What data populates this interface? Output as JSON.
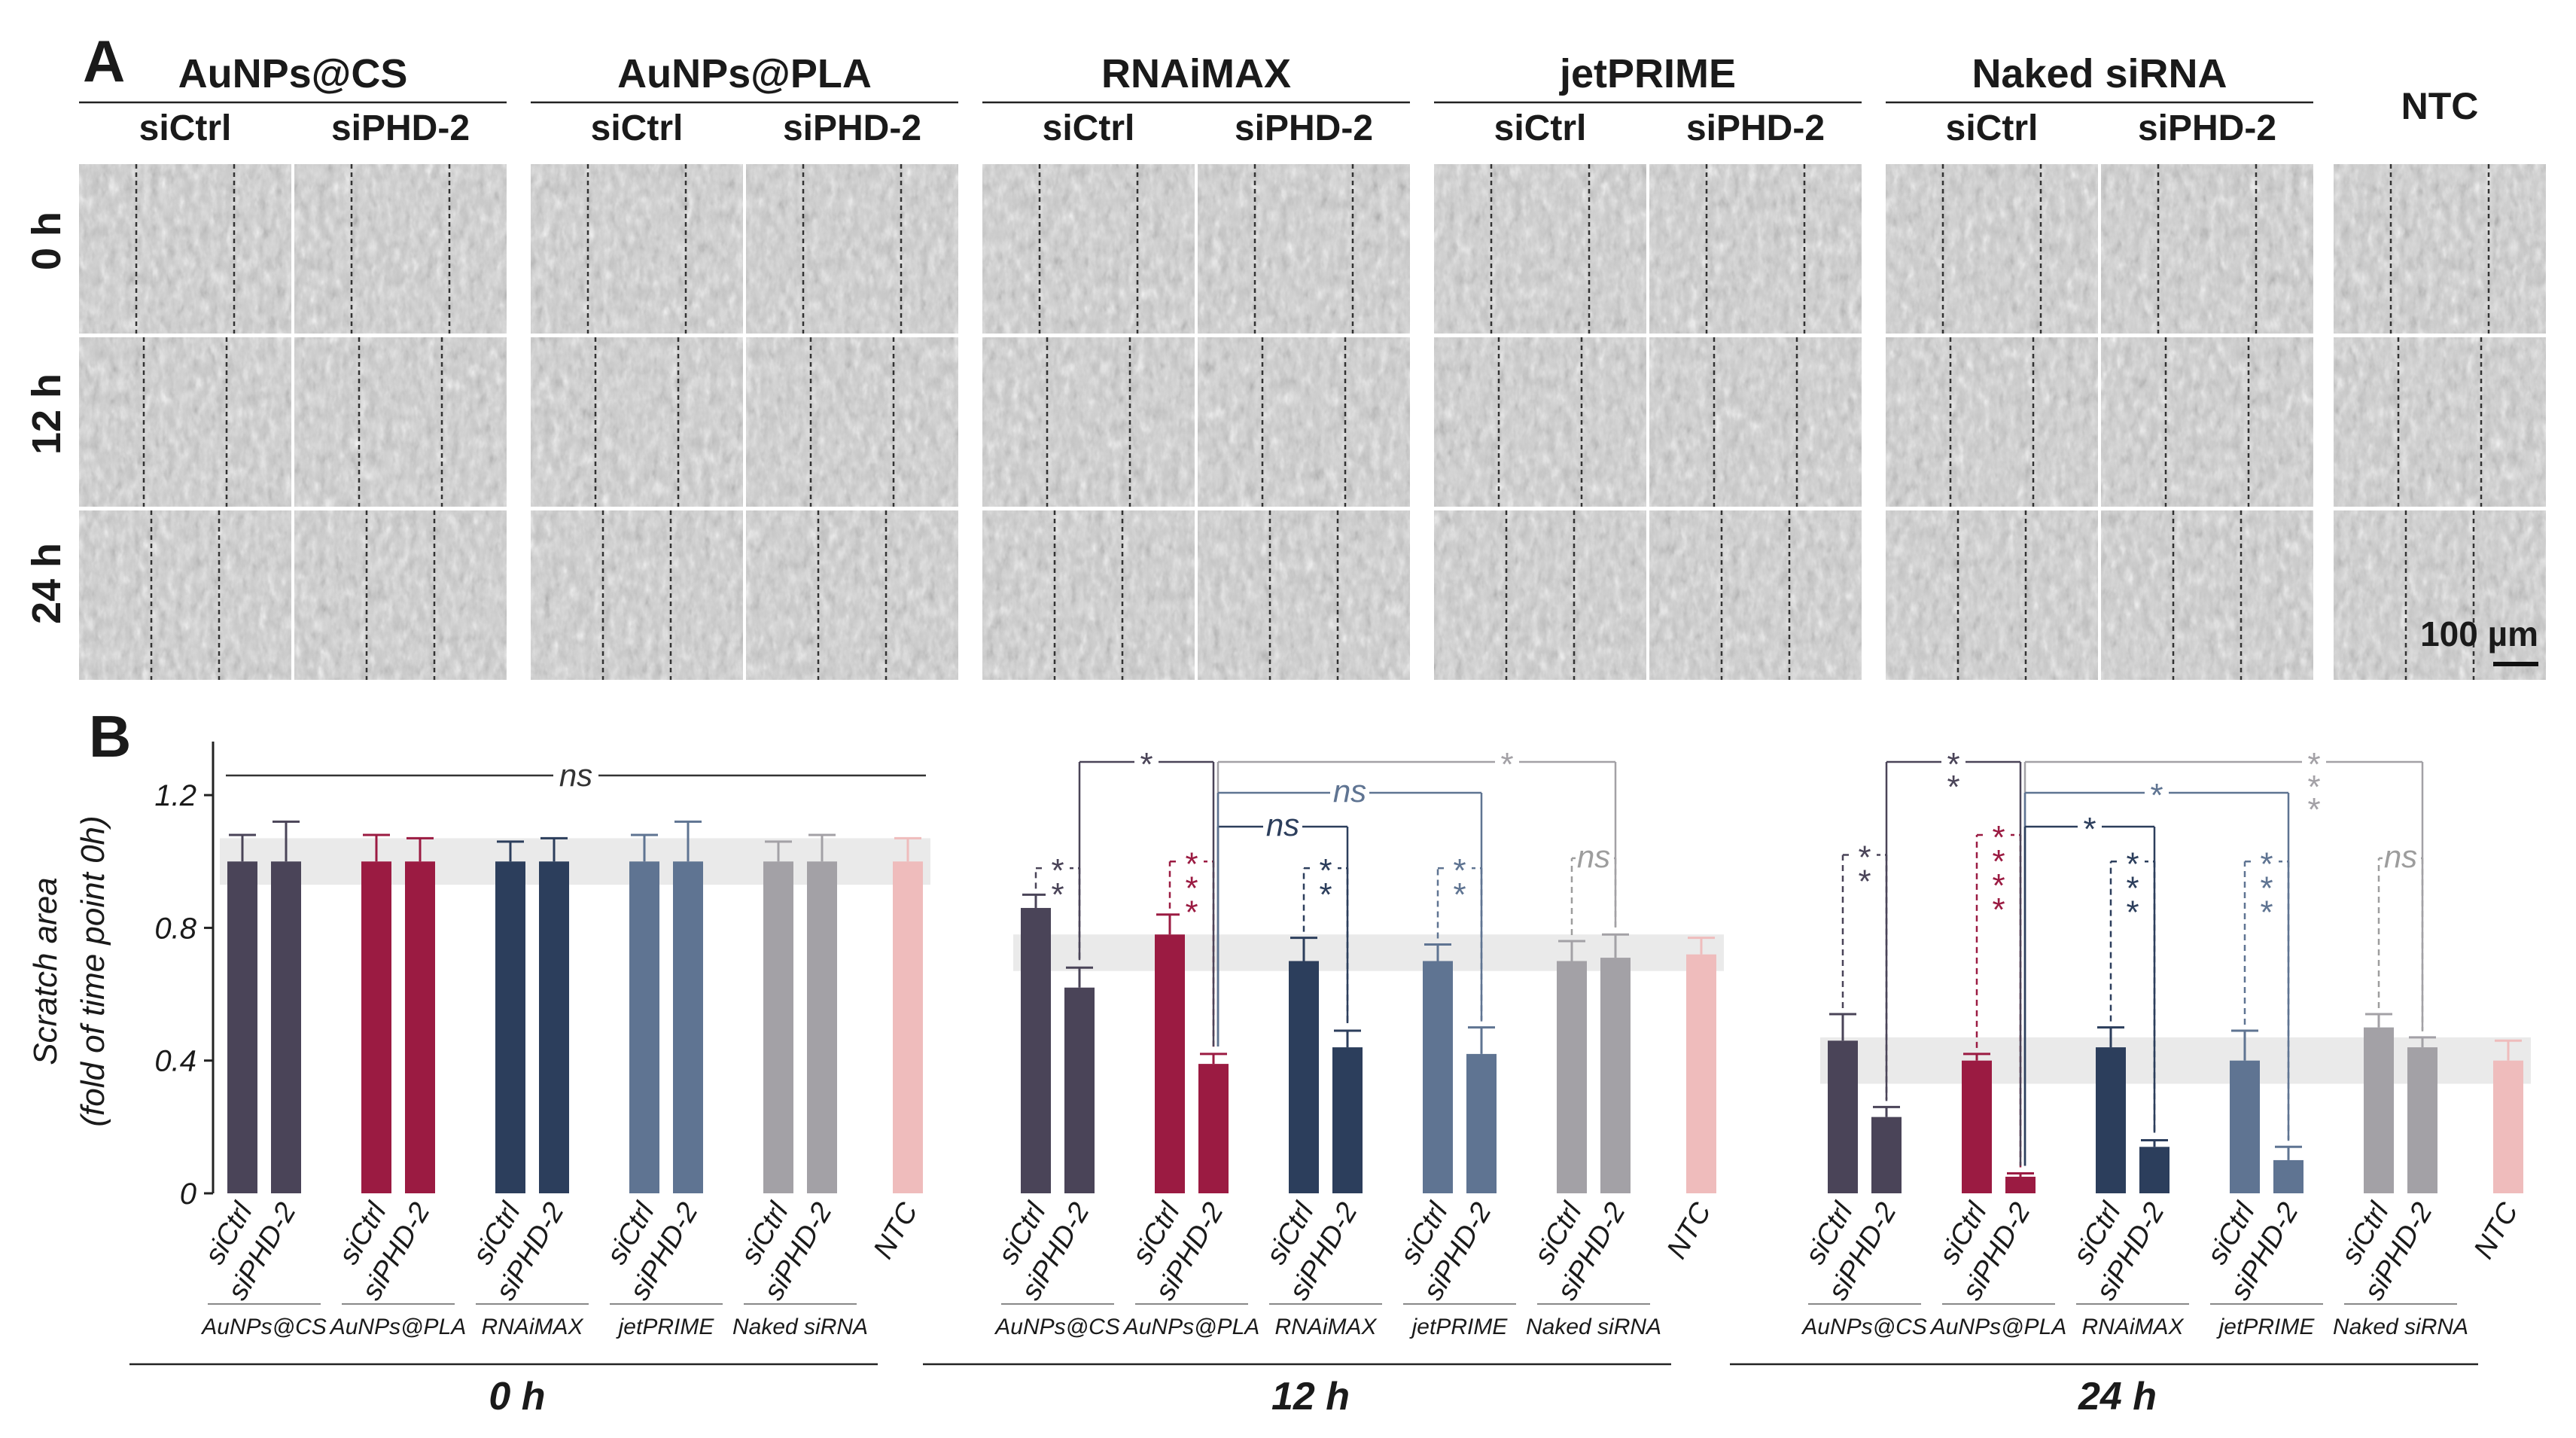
{
  "panel_a": {
    "letter": "A",
    "reagents": [
      "AuNPs@CS",
      "AuNPs@PLA",
      "RNAiMAX",
      "jetPRIME",
      "Naked siRNA"
    ],
    "conditions": [
      "siCtrl",
      "siPHD-2"
    ],
    "control_label": "NTC",
    "timepoints": [
      "0 h",
      "12 h",
      "24 h"
    ],
    "scale_bar": "100 µm"
  },
  "panel_b": {
    "letter": "B",
    "chart_data": {
      "type": "bar",
      "ylabel": "Scratch area",
      "ylabel_sub": "(fold of time point 0h)",
      "yticks": [
        "0",
        "0.4",
        "0.8",
        "1.2"
      ],
      "ylim": [
        0,
        1.35
      ],
      "timepoint_labels": [
        "0 h",
        "12 h",
        "24 h"
      ],
      "group_labels": [
        "AuNPs@CS",
        "AuNPs@PLA",
        "RNAiMAX",
        "jetPRIME",
        "Naked siRNA"
      ],
      "categories": [
        "siCtrl",
        "siPHD-2"
      ],
      "control_category": "NTC",
      "colors": {
        "AuNPs@CS": "#4a4458",
        "AuNPs@PLA": "#9b1b42",
        "RNAiMAX": "#2c3e5c",
        "jetPRIME": "#5f7492",
        "Naked siRNA": "#a3a1a6",
        "NTC": "#efbcbc",
        "band": "#e6e6e6"
      },
      "series": [
        {
          "name": "0 h",
          "band": [
            0.93,
            1.07
          ],
          "values": [
            {
              "group": "AuNPs@CS",
              "siCtrl": [
                1.0,
                0.08
              ],
              "siPHD-2": [
                1.0,
                0.12
              ]
            },
            {
              "group": "AuNPs@PLA",
              "siCtrl": [
                1.0,
                0.08
              ],
              "siPHD-2": [
                1.0,
                0.07
              ]
            },
            {
              "group": "RNAiMAX",
              "siCtrl": [
                1.0,
                0.06
              ],
              "siPHD-2": [
                1.0,
                0.07
              ]
            },
            {
              "group": "jetPRIME",
              "siCtrl": [
                1.0,
                0.08
              ],
              "siPHD-2": [
                1.0,
                0.12
              ]
            },
            {
              "group": "Naked siRNA",
              "siCtrl": [
                1.0,
                0.06
              ],
              "siPHD-2": [
                1.0,
                0.08
              ]
            }
          ],
          "ntc": [
            1.0,
            0.07
          ]
        },
        {
          "name": "12 h",
          "band": [
            0.67,
            0.78
          ],
          "values": [
            {
              "group": "AuNPs@CS",
              "siCtrl": [
                0.86,
                0.04
              ],
              "siPHD-2": [
                0.62,
                0.06
              ]
            },
            {
              "group": "AuNPs@PLA",
              "siCtrl": [
                0.78,
                0.06
              ],
              "siPHD-2": [
                0.39,
                0.03
              ]
            },
            {
              "group": "RNAiMAX",
              "siCtrl": [
                0.7,
                0.07
              ],
              "siPHD-2": [
                0.44,
                0.05
              ]
            },
            {
              "group": "jetPRIME",
              "siCtrl": [
                0.7,
                0.05
              ],
              "siPHD-2": [
                0.42,
                0.08
              ]
            },
            {
              "group": "Naked siRNA",
              "siCtrl": [
                0.7,
                0.06
              ],
              "siPHD-2": [
                0.71,
                0.07
              ]
            }
          ],
          "ntc": [
            0.72,
            0.05
          ]
        },
        {
          "name": "24 h",
          "band": [
            0.33,
            0.47
          ],
          "values": [
            {
              "group": "AuNPs@CS",
              "siCtrl": [
                0.46,
                0.08
              ],
              "siPHD-2": [
                0.23,
                0.03
              ]
            },
            {
              "group": "AuNPs@PLA",
              "siCtrl": [
                0.4,
                0.02
              ],
              "siPHD-2": [
                0.05,
                0.01
              ]
            },
            {
              "group": "RNAiMAX",
              "siCtrl": [
                0.44,
                0.06
              ],
              "siPHD-2": [
                0.14,
                0.02
              ]
            },
            {
              "group": "jetPRIME",
              "siCtrl": [
                0.4,
                0.09
              ],
              "siPHD-2": [
                0.1,
                0.04
              ]
            },
            {
              "group": "Naked siRNA",
              "siCtrl": [
                0.5,
                0.04
              ],
              "siPHD-2": [
                0.44,
                0.03
              ]
            }
          ],
          "ntc": [
            0.4,
            0.06
          ]
        }
      ],
      "annotations": {
        "overall_0h": "ns",
        "pair_12h": [
          "**",
          "***",
          "**",
          "**",
          "ns"
        ],
        "pair_24h": [
          "**",
          "****",
          "***",
          "***",
          "ns"
        ],
        "vs_ctrl_12h": [
          {
            "from": "AuNPs@CS",
            "to": "AuNPs@PLA",
            "label": "*"
          },
          {
            "from": "AuNPs@PLA",
            "to": "Naked siRNA",
            "label": "*"
          },
          {
            "from": "AuNPs@PLA",
            "to": "RNAiMAX",
            "label": "ns"
          },
          {
            "from": "AuNPs@PLA",
            "to": "jetPRIME",
            "label": "ns"
          }
        ],
        "vs_ctrl_24h": [
          {
            "from": "AuNPs@CS",
            "to": "AuNPs@PLA",
            "label": "**"
          },
          {
            "from": "AuNPs@PLA",
            "to": "Naked siRNA",
            "label": "***"
          },
          {
            "from": "AuNPs@PLA",
            "to": "jetPRIME",
            "label": "*"
          },
          {
            "from": "AuNPs@PLA",
            "to": "RNAiMAX",
            "label": "*"
          }
        ]
      }
    }
  }
}
